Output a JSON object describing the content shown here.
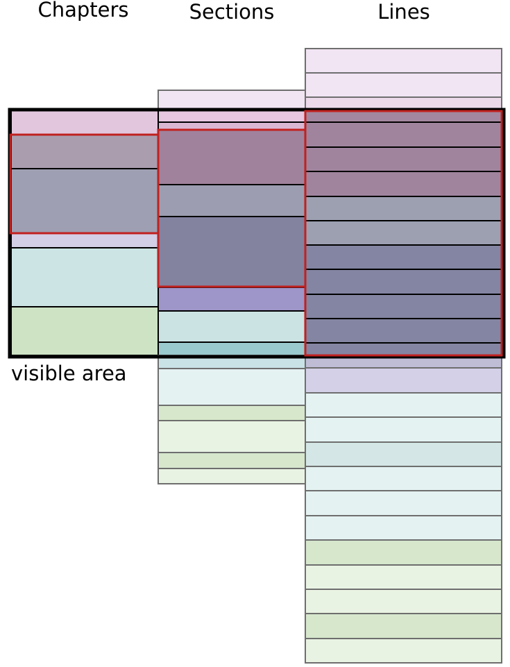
{
  "titles": {
    "chapters": "Chapters",
    "sections": "Sections",
    "lines": "Lines"
  },
  "visible_label": "visible area",
  "colors": {
    "outline_inactive": "#6e6e6e",
    "outline_active": "#000000",
    "highlight": "#c0211f",
    "viewport_border": "#000000"
  }
}
